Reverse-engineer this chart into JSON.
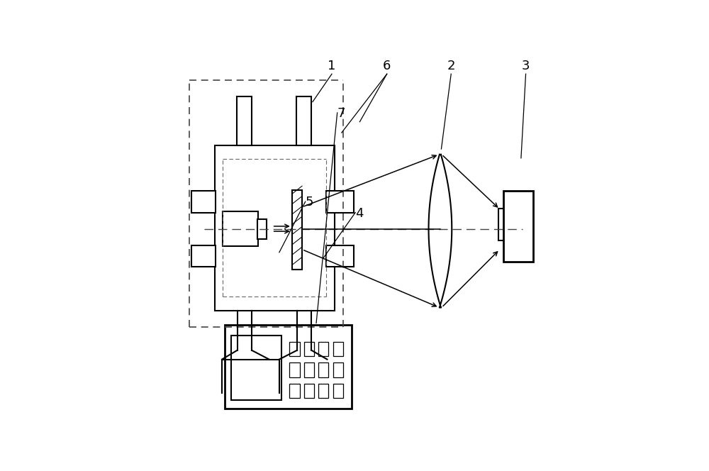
{
  "bg_color": "#ffffff",
  "line_color": "#000000",
  "label_fontsize": 13,
  "lw_main": 1.5,
  "lw_thin": 1.0
}
